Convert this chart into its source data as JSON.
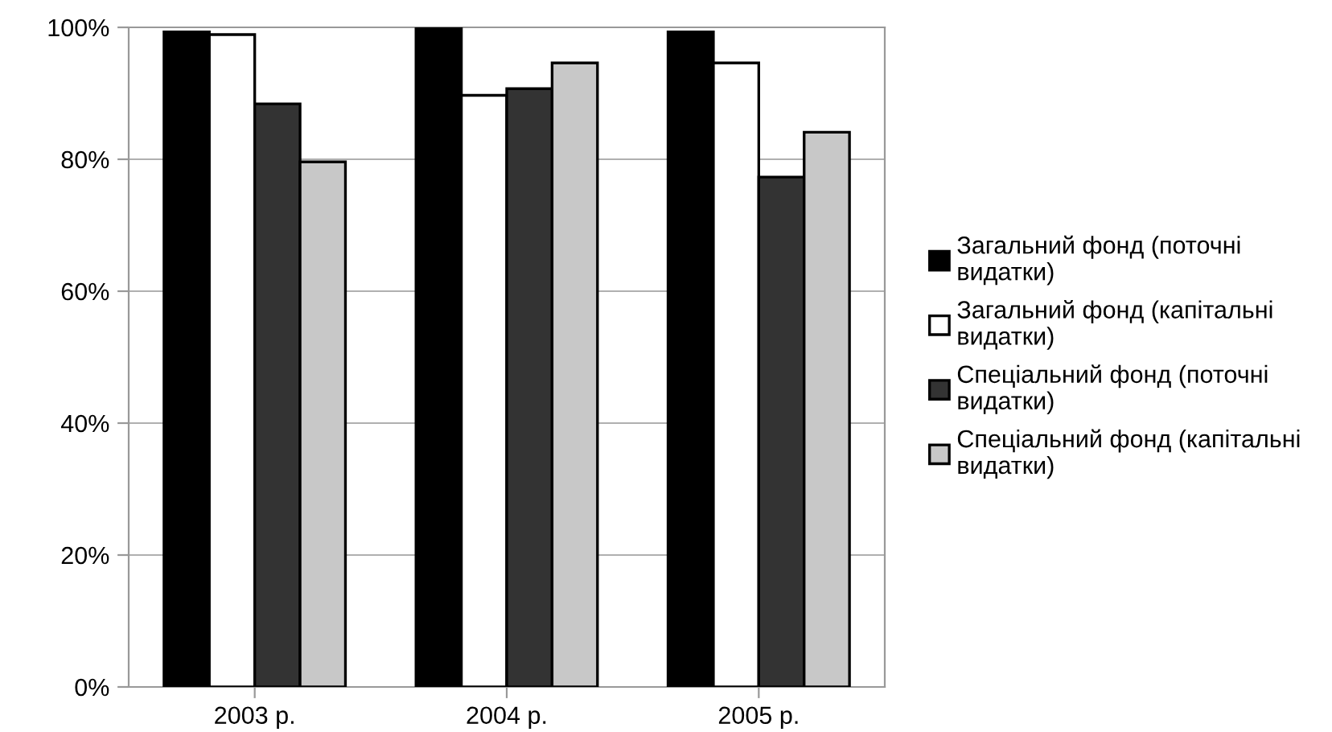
{
  "chart_data": {
    "type": "bar",
    "categories": [
      "2003 р.",
      "2004 р.",
      "2005 р."
    ],
    "series": [
      {
        "name": "Загальний фонд (поточні видатки)",
        "color": "#000000",
        "values": [
          99.3,
          100,
          99.3
        ]
      },
      {
        "name": "Загальний фонд (капітальні видатки)",
        "color": "#ffffff",
        "values": [
          98.9,
          89.7,
          94.6
        ]
      },
      {
        "name": "Спеціальний фонд (поточні видатки)",
        "color": "#333333",
        "values": [
          88.4,
          90.7,
          77.3
        ]
      },
      {
        "name": "Спеціальний фонд (капітальні видатки)",
        "color": "#c8c8c8",
        "values": [
          79.6,
          94.6,
          84.1
        ]
      }
    ],
    "ylim": [
      0,
      100
    ],
    "yticks": [
      {
        "value": 0,
        "label": "0%"
      },
      {
        "value": 20,
        "label": "20%"
      },
      {
        "value": 40,
        "label": "40%"
      },
      {
        "value": 60,
        "label": "60%"
      },
      {
        "value": 80,
        "label": "80%"
      },
      {
        "value": 100,
        "label": "100%"
      }
    ],
    "grid": "y",
    "legend": "right"
  }
}
